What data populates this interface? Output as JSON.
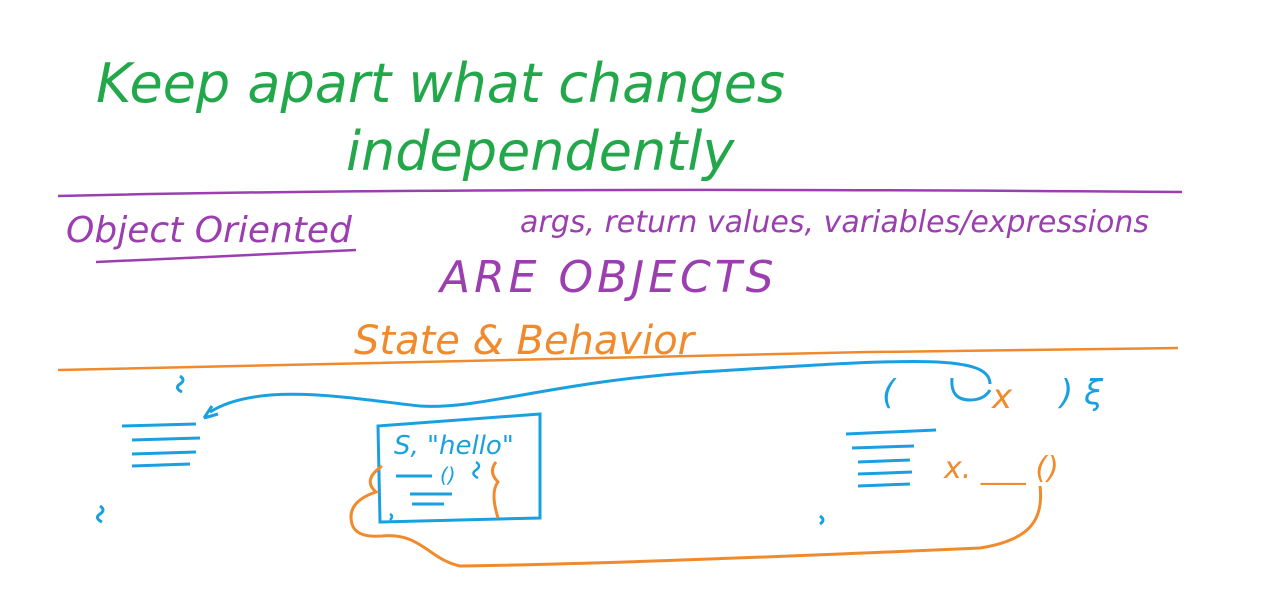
{
  "colors": {
    "green": "#22a84a",
    "purple": "#9b3fb0",
    "orange": "#f08a2c",
    "blue": "#1aa0e0"
  },
  "heading": {
    "line1": "Keep apart what changes",
    "line2": "independently"
  },
  "oo": {
    "title": "Object Oriented",
    "list": "args, return values, variables/expressions",
    "are_objects": "ARE OBJECTS"
  },
  "state_behavior": "State & Behavior",
  "code": {
    "inner_literal": "S, \"hello\"",
    "inner_call": "()",
    "right_call": "x. ___ ()",
    "param": "x"
  }
}
